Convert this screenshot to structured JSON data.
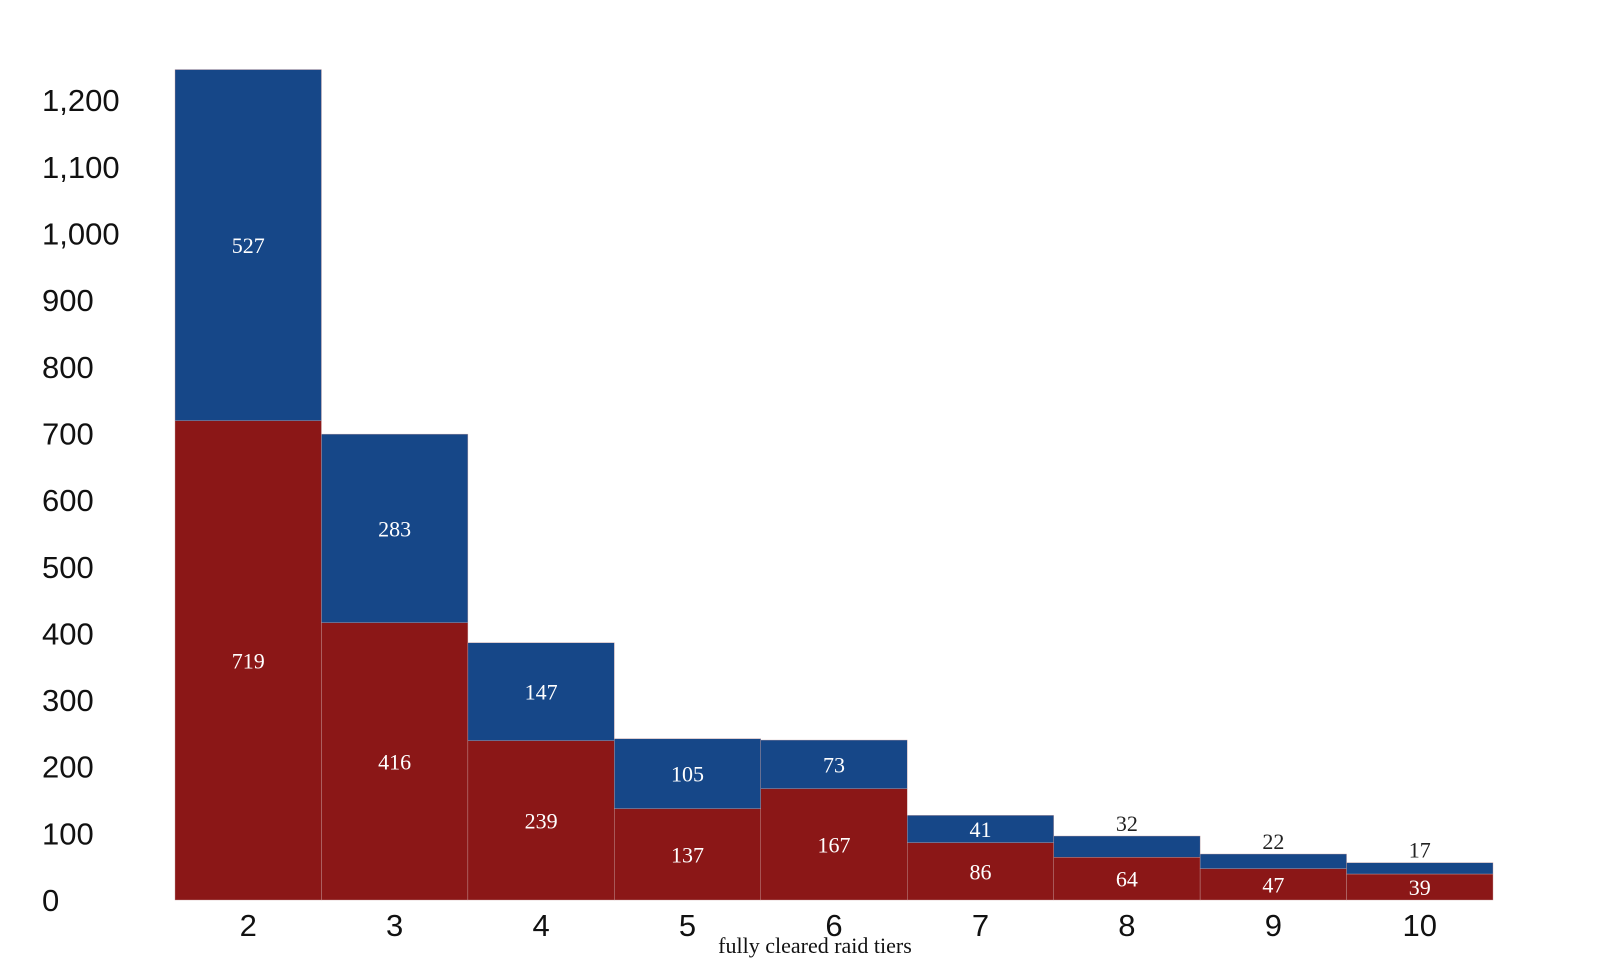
{
  "chart_data": {
    "type": "bar",
    "stacked": true,
    "categories": [
      "2",
      "3",
      "4",
      "5",
      "6",
      "7",
      "8",
      "9",
      "10"
    ],
    "series": [
      {
        "color": "#8b1717",
        "values": [
          719,
          416,
          239,
          137,
          167,
          86,
          64,
          47,
          39
        ]
      },
      {
        "color": "#164788",
        "values": [
          527,
          283,
          147,
          105,
          73,
          41,
          32,
          22,
          17
        ]
      }
    ],
    "xlabel": "fully cleared raid tiers",
    "ylabel": "",
    "ylim": [
      0,
      1250
    ],
    "yticks": [
      "0",
      "100",
      "200",
      "300",
      "400",
      "500",
      "600",
      "700",
      "800",
      "900",
      "1,000",
      "1,100",
      "1,200"
    ],
    "ytick_values": [
      0,
      100,
      200,
      300,
      400,
      500,
      600,
      700,
      800,
      900,
      1000,
      1100,
      1200
    ],
    "grid": false,
    "legend": "none"
  }
}
